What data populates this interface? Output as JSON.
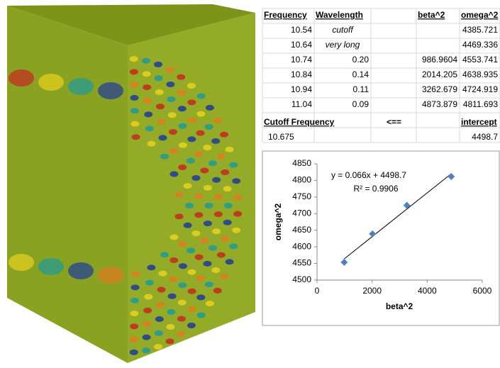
{
  "table": {
    "headers": {
      "frequency": "Frequency",
      "wavelength": "Wavelength",
      "beta2": "beta^2",
      "omega2": "omega^2"
    },
    "rows": [
      {
        "frequency": "10.54",
        "wavelength": "cutoff",
        "omega2": "4385.721"
      },
      {
        "frequency": "10.64",
        "wavelength": "very long",
        "omega2": "4469.336"
      },
      {
        "frequency": "10.74",
        "wavelength": "0.20",
        "beta2": "986.9604",
        "omega2": "4553.741"
      },
      {
        "frequency": "10.84",
        "wavelength": "0.14",
        "beta2": "2014.205",
        "omega2": "4638.935"
      },
      {
        "frequency": "10.94",
        "wavelength": "0.11",
        "beta2": "3262.679",
        "omega2": "4724.919"
      },
      {
        "frequency": "11.04",
        "wavelength": "0.09",
        "beta2": "4873.879",
        "omega2": "4811.693"
      }
    ],
    "cutoff": {
      "label": "Cutoff Frequency",
      "arrow": "<==",
      "intercept_label": "intercept",
      "frequency": "10.675",
      "intercept": "4498.7"
    }
  },
  "chart_data": {
    "type": "scatter",
    "x_label": "beta^2",
    "y_label": "omega^2",
    "equation": "y = 0.066x + 4498.7",
    "r_squared": "R² = 0.9906",
    "x": [
      986.9604,
      2014.205,
      3262.679,
      4873.879
    ],
    "values": [
      4553.741,
      4638.935,
      4724.919,
      4811.693
    ],
    "color": "#4f81bd",
    "xlim": [
      0,
      6000
    ],
    "xticks": [
      0,
      2000,
      4000,
      6000
    ],
    "ylim": [
      4500,
      4850
    ],
    "yticks": [
      4500,
      4550,
      4600,
      4650,
      4700,
      4750,
      4800,
      4850
    ],
    "trendline": true
  }
}
